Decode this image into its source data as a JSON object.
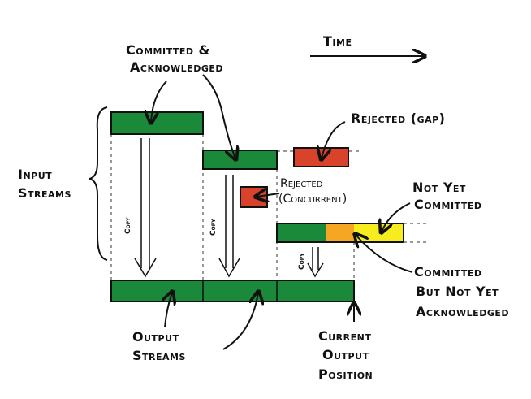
{
  "labels": {
    "time": "Time",
    "committed_ack_line1": "Committed &",
    "committed_ack_line2": "Acknowledged",
    "rejected_gap": "Rejected (gap)",
    "input_line1": "Input",
    "input_line2": "Streams",
    "rejected_conc_line1": "Rejected",
    "rejected_conc_line2": "(Concurrent)",
    "not_yet_line1": "Not Yet",
    "not_yet_line2": "Committed",
    "cbnya_line1": "Committed",
    "cbnya_line2": "But Not Yet",
    "cbnya_line3": "Acknowledged",
    "output_line1": "Output",
    "output_line2": "Streams",
    "current_line1": "Current",
    "current_line2": "Output",
    "current_line3": "Position",
    "copy": "Copy"
  },
  "colors": {
    "committed": "#1a8a3a",
    "rejected": "#d9432b",
    "pending": "#f5a623",
    "not_committed": "#f7ec1e",
    "ink": "#111111"
  }
}
